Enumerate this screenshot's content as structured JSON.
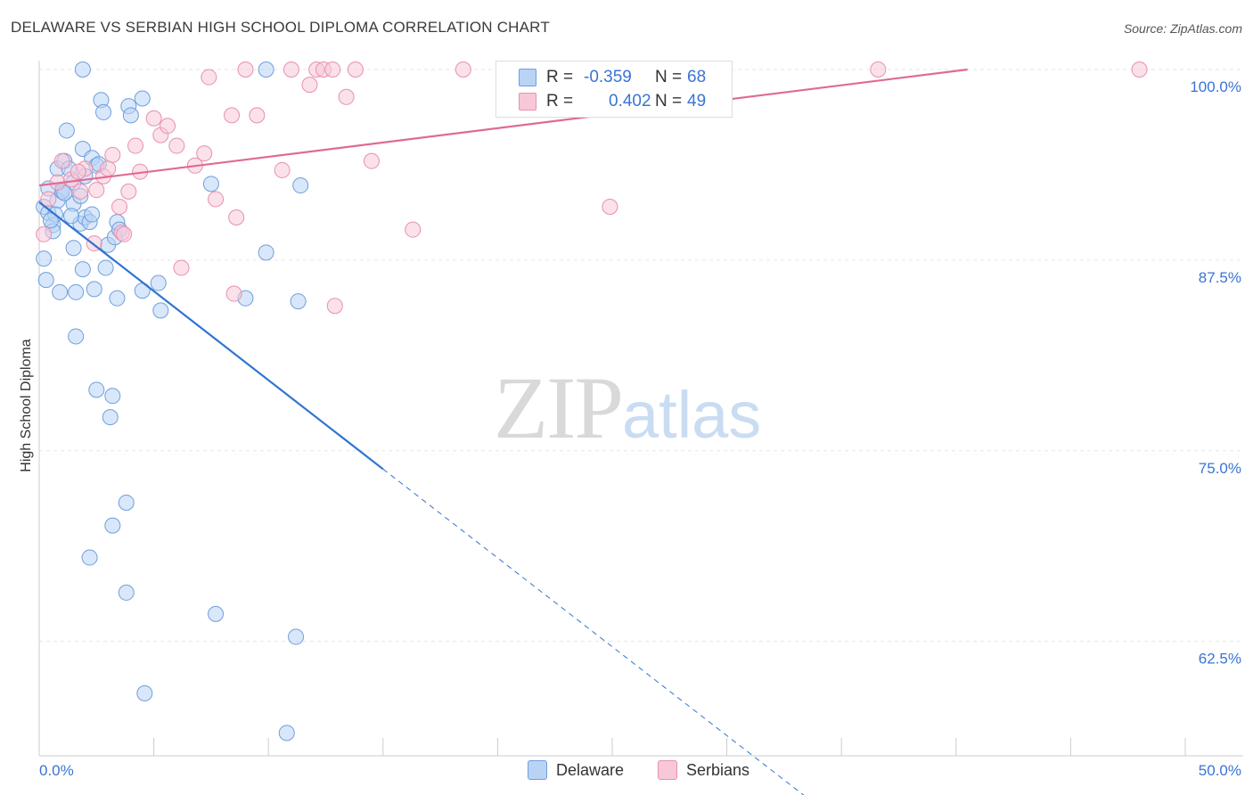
{
  "title": "DELAWARE VS SERBIAN HIGH SCHOOL DIPLOMA CORRELATION CHART",
  "source": "Source: ZipAtlas.com",
  "watermark": {
    "zip": "ZIP",
    "atlas": "atlas"
  },
  "colors": {
    "delaware_fill": "#b9d3f5",
    "delaware_stroke": "#6f9fdc",
    "delaware_line": "#2f74d0",
    "serbians_fill": "#f8c8d8",
    "serbians_stroke": "#e890ae",
    "serbians_line": "#e06a92",
    "tick_label": "#3a74d4",
    "grid": "#e6e6e6"
  },
  "legend": {
    "delaware": {
      "r_label": "R =",
      "r_value": "-0.359",
      "n_label": "N =",
      "n_value": "68"
    },
    "serbians": {
      "r_label": "R =",
      "r_value": "0.402",
      "n_label": "N =",
      "n_value": "49"
    }
  },
  "chart_data": {
    "type": "scatter",
    "xlabel": "",
    "ylabel": "High School Diploma",
    "xlim": [
      0,
      50
    ],
    "ylim": [
      55,
      100
    ],
    "x_tick_labels": [
      "0.0%",
      "50.0%"
    ],
    "y_ticks": [
      62.5,
      75.0,
      87.5,
      100.0
    ],
    "y_tick_labels": [
      "62.5%",
      "75.0%",
      "87.5%",
      "100.0%"
    ],
    "grid": true,
    "legend_position": "bottom",
    "series": [
      {
        "name": "Delaware",
        "r": -0.359,
        "n": 68,
        "trend": {
          "x0": 0.0,
          "y0": 91.3,
          "x1": 15.0,
          "y1": 73.8,
          "dashed_to_x": 35.0,
          "dashed_to_y": 50.5
        },
        "points": [
          [
            0.2,
            91.0
          ],
          [
            0.4,
            90.6
          ],
          [
            0.6,
            89.8
          ],
          [
            0.8,
            93.5
          ],
          [
            1.0,
            92.1
          ],
          [
            1.1,
            94.0
          ],
          [
            1.2,
            96.0
          ],
          [
            1.3,
            93.5
          ],
          [
            1.5,
            91.2
          ],
          [
            1.8,
            89.9
          ],
          [
            1.9,
            94.8
          ],
          [
            2.0,
            90.3
          ],
          [
            2.2,
            90.0
          ],
          [
            2.3,
            94.2
          ],
          [
            2.5,
            93.7
          ],
          [
            2.7,
            98.0
          ],
          [
            2.8,
            97.2
          ],
          [
            3.4,
            90.0
          ],
          [
            3.9,
            97.6
          ],
          [
            4.0,
            97.0
          ],
          [
            1.9,
            100.0
          ],
          [
            9.9,
            100.0
          ],
          [
            11.4,
            92.4
          ],
          [
            11.3,
            84.8
          ],
          [
            9.0,
            85.0
          ],
          [
            9.9,
            88.0
          ],
          [
            3.0,
            88.5
          ],
          [
            2.9,
            87.0
          ],
          [
            3.3,
            89.0
          ],
          [
            1.5,
            92.6
          ],
          [
            0.8,
            91.4
          ],
          [
            1.4,
            90.4
          ],
          [
            0.2,
            87.6
          ],
          [
            0.3,
            86.2
          ],
          [
            0.9,
            85.4
          ],
          [
            1.5,
            88.3
          ],
          [
            1.9,
            86.9
          ],
          [
            2.4,
            85.6
          ],
          [
            3.4,
            85.0
          ],
          [
            4.5,
            85.5
          ],
          [
            5.2,
            86.0
          ],
          [
            5.3,
            84.2
          ],
          [
            1.6,
            85.4
          ],
          [
            1.6,
            82.5
          ],
          [
            2.5,
            79.0
          ],
          [
            3.2,
            78.6
          ],
          [
            3.1,
            77.2
          ],
          [
            3.8,
            71.6
          ],
          [
            3.2,
            70.1
          ],
          [
            2.2,
            68.0
          ],
          [
            3.8,
            65.7
          ],
          [
            7.7,
            64.3
          ],
          [
            11.2,
            62.8
          ],
          [
            4.6,
            59.1
          ],
          [
            10.8,
            56.5
          ],
          [
            7.5,
            92.5
          ],
          [
            4.5,
            98.1
          ],
          [
            0.6,
            89.4
          ],
          [
            1.0,
            92.0
          ],
          [
            0.7,
            90.5
          ],
          [
            2.3,
            90.5
          ],
          [
            1.8,
            91.7
          ],
          [
            2.0,
            93.0
          ],
          [
            0.4,
            92.2
          ],
          [
            1.1,
            91.9
          ],
          [
            2.6,
            93.8
          ],
          [
            3.5,
            89.5
          ],
          [
            0.5,
            90.1
          ]
        ]
      },
      {
        "name": "Serbians",
        "r": 0.402,
        "n": 49,
        "trend": {
          "x0": 0.0,
          "y0": 92.4,
          "x1": 40.5,
          "y1": 100.0
        },
        "points": [
          [
            0.2,
            89.2
          ],
          [
            0.4,
            91.5
          ],
          [
            0.8,
            92.6
          ],
          [
            1.0,
            94.0
          ],
          [
            1.4,
            92.8
          ],
          [
            1.8,
            92.0
          ],
          [
            2.0,
            93.5
          ],
          [
            2.5,
            92.1
          ],
          [
            2.8,
            93.0
          ],
          [
            3.0,
            93.5
          ],
          [
            3.2,
            94.4
          ],
          [
            3.5,
            91.0
          ],
          [
            3.6,
            89.3
          ],
          [
            3.9,
            92.0
          ],
          [
            4.2,
            95.0
          ],
          [
            4.4,
            93.3
          ],
          [
            5.0,
            96.8
          ],
          [
            5.3,
            95.7
          ],
          [
            5.6,
            96.3
          ],
          [
            6.0,
            95.0
          ],
          [
            6.2,
            87.0
          ],
          [
            6.8,
            93.7
          ],
          [
            7.2,
            94.5
          ],
          [
            7.4,
            99.5
          ],
          [
            7.7,
            91.5
          ],
          [
            8.4,
            97.0
          ],
          [
            8.6,
            90.3
          ],
          [
            9.0,
            100.0
          ],
          [
            9.5,
            97.0
          ],
          [
            10.6,
            93.4
          ],
          [
            11.0,
            100.0
          ],
          [
            11.8,
            99.0
          ],
          [
            12.1,
            100.0
          ],
          [
            12.4,
            100.0
          ],
          [
            12.8,
            100.0
          ],
          [
            13.4,
            98.2
          ],
          [
            13.8,
            100.0
          ],
          [
            14.5,
            94.0
          ],
          [
            16.3,
            89.5
          ],
          [
            18.5,
            100.0
          ],
          [
            20.3,
            100.0
          ],
          [
            24.9,
            91.0
          ],
          [
            36.6,
            100.0
          ],
          [
            48.0,
            100.0
          ],
          [
            8.5,
            85.3
          ],
          [
            12.9,
            84.5
          ],
          [
            2.4,
            88.6
          ],
          [
            3.7,
            89.2
          ],
          [
            1.7,
            93.3
          ]
        ]
      }
    ]
  },
  "bottom_legend": {
    "delaware": "Delaware",
    "serbians": "Serbians"
  }
}
